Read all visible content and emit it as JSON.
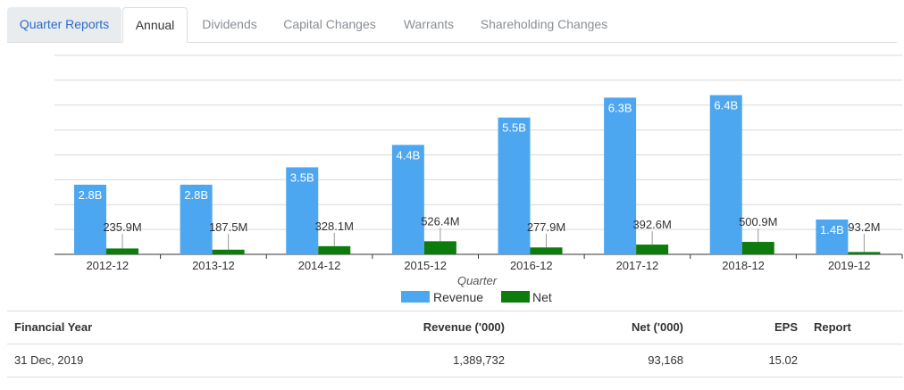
{
  "tabs": [
    {
      "label": "Quarter Reports"
    },
    {
      "label": "Annual"
    },
    {
      "label": "Dividends"
    },
    {
      "label": "Capital Changes"
    },
    {
      "label": "Warrants"
    },
    {
      "label": "Shareholding Changes"
    }
  ],
  "active_tab": "Annual",
  "colors": {
    "revenue": "#4da7f0",
    "net": "#0d7c0d",
    "grid": "#d9d9d9",
    "axis": "#333333"
  },
  "chart_data": {
    "type": "bar",
    "categories": [
      "2012-12",
      "2013-12",
      "2014-12",
      "2015-12",
      "2016-12",
      "2017-12",
      "2018-12",
      "2019-12"
    ],
    "xlabel": "Quarter",
    "ylim": [
      0,
      8000000000
    ],
    "grid": true,
    "legend": "bottom-center",
    "series": [
      {
        "name": "Revenue",
        "color": "#4da7f0",
        "values": [
          2800000000,
          2800000000,
          3500000000,
          4400000000,
          5500000000,
          6300000000,
          6400000000,
          1400000000
        ],
        "labels": [
          "2.8B",
          "2.8B",
          "3.5B",
          "4.4B",
          "5.5B",
          "6.3B",
          "6.4B",
          "1.4B"
        ]
      },
      {
        "name": "Net",
        "color": "#0d7c0d",
        "values": [
          235900000,
          187500000,
          328100000,
          526400000,
          277900000,
          392600000,
          500900000,
          93200000
        ],
        "labels": [
          "235.9M",
          "187.5M",
          "328.1M",
          "526.4M",
          "277.9M",
          "392.6M",
          "500.9M",
          "93.2M"
        ]
      }
    ]
  },
  "table": {
    "headers": [
      "Financial Year",
      "Revenue ('000)",
      "Net ('000)",
      "EPS",
      "Report"
    ],
    "rows": [
      [
        "31 Dec, 2019",
        "1,389,732",
        "93,168",
        "15.02",
        ""
      ]
    ]
  }
}
